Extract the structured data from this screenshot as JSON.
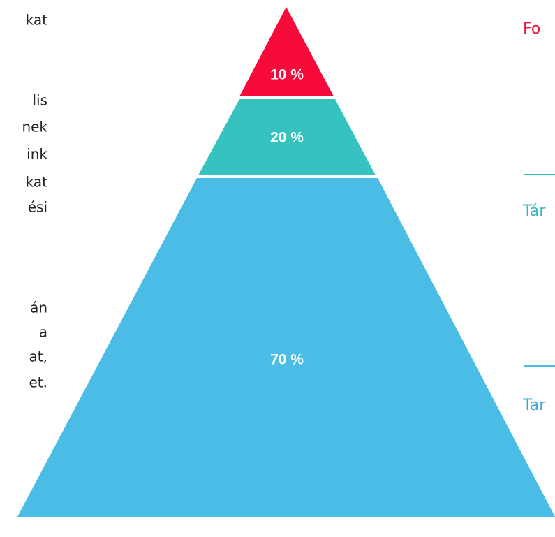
{
  "left_text": {
    "lines": [
      "kat",
      "lis",
      "nek",
      "ink",
      "kat",
      "ési",
      "án",
      "a",
      "at,",
      "et."
    ]
  },
  "pyramid": {
    "levels": [
      {
        "label": "10 %"
      },
      {
        "label": "20 %"
      },
      {
        "label": "70 %"
      }
    ]
  },
  "right_labels": [
    "Fo",
    "Tár",
    "Tar"
  ]
}
